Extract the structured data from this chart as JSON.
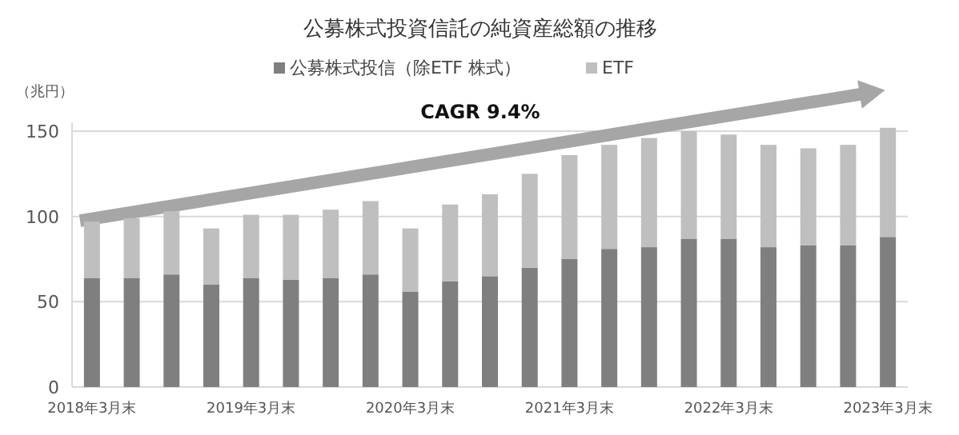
{
  "chart_data": {
    "type": "bar",
    "stacked": true,
    "title": "公募株式投資信託の純資産総額の推移",
    "ylabel": "（兆円）",
    "categories": [
      "2018年3月末",
      null,
      null,
      null,
      "2019年3月末",
      null,
      null,
      null,
      "2020年3月末",
      null,
      null,
      null,
      "2021年3月末",
      null,
      null,
      null,
      "2022年3月末",
      null,
      null,
      null,
      "2023年3月末"
    ],
    "series": [
      {
        "name": "公募株式投信（除ETF 株式）",
        "color": "#7f7f7f",
        "values": [
          64,
          64,
          66,
          60,
          64,
          63,
          64,
          66,
          56,
          62,
          65,
          70,
          75,
          81,
          82,
          87,
          87,
          82,
          83,
          83,
          88
        ]
      },
      {
        "name": "ETF",
        "color": "#bfbfbf",
        "values": [
          33,
          35,
          37,
          33,
          37,
          38,
          40,
          43,
          37,
          45,
          48,
          55,
          61,
          61,
          64,
          63,
          61,
          60,
          57,
          59,
          64
        ]
      }
    ],
    "ylim": [
      0,
      155
    ],
    "yticks": [
      0,
      50,
      100,
      150
    ],
    "grid": "y",
    "legend": "top",
    "annotations": [
      "CAGR 9.4%"
    ]
  }
}
